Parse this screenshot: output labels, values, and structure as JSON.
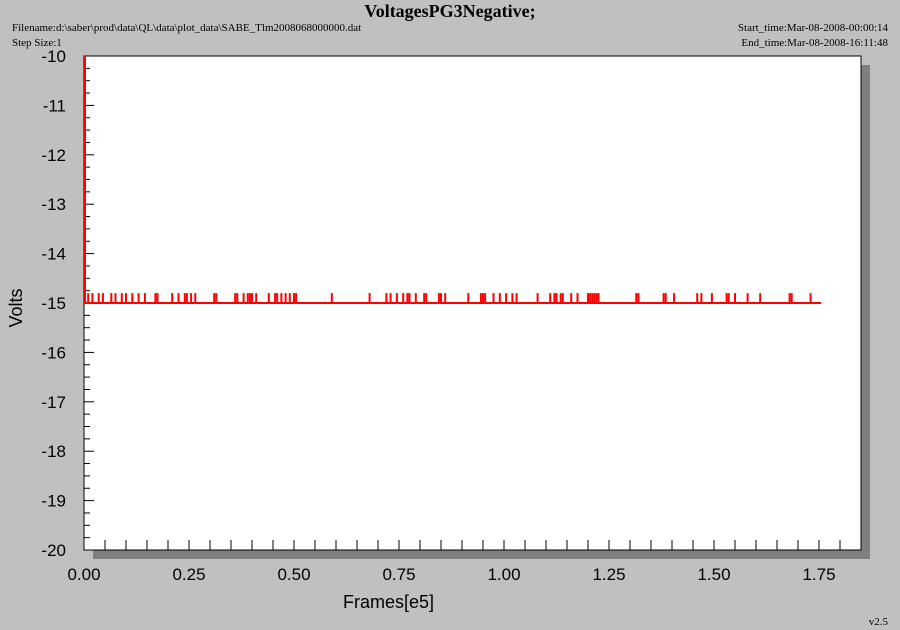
{
  "header": {
    "title": "VoltagesPG3Negative;",
    "filename": "Filename:d:\\saber\\prod\\data\\QL\\data\\plot_data\\SABE_Tlm2008068000000.dat",
    "step_size": "Step Size:1",
    "start_time": "Start_time:Mar-08-2008-00:00:14",
    "end_time": "End_time:Mar-08-2008-16:11:48"
  },
  "version": "v2.5",
  "colors": {
    "background": "#c0c0c0",
    "plot_area": "#ffffff",
    "shadow": "#7f7f7f",
    "series": "#ff0000"
  },
  "chart_data": {
    "type": "line",
    "xlabel": "Frames[e5]",
    "ylabel": "Volts",
    "xlim": [
      0,
      1.85
    ],
    "ylim": [
      -20,
      -10
    ],
    "y_inverted": true,
    "xticks": [
      "0.00",
      "0.25",
      "0.50",
      "0.75",
      "1.00",
      "1.25",
      "1.50",
      "1.75"
    ],
    "yticks": [
      "-10",
      "-11",
      "-12",
      "-13",
      "-14",
      "-15",
      "-16",
      "-17",
      "-18",
      "-19",
      "-20"
    ],
    "series": [
      {
        "baseline": -15,
        "spike_value": -14.8,
        "x_range": [
          0,
          1.755
        ],
        "initial_spike": {
          "x": 0,
          "from": -15,
          "to": -10
        },
        "spikes_x": [
          0.01,
          0.02,
          0.035,
          0.045,
          0.065,
          0.075,
          0.09,
          0.1,
          0.115,
          0.13,
          0.145,
          0.17,
          0.175,
          0.21,
          0.225,
          0.24,
          0.245,
          0.255,
          0.265,
          0.31,
          0.315,
          0.36,
          0.365,
          0.38,
          0.39,
          0.395,
          0.4,
          0.41,
          0.44,
          0.455,
          0.46,
          0.47,
          0.48,
          0.49,
          0.5,
          0.505,
          0.59,
          0.68,
          0.72,
          0.73,
          0.745,
          0.76,
          0.77,
          0.775,
          0.79,
          0.81,
          0.815,
          0.845,
          0.85,
          0.86,
          0.915,
          0.945,
          0.95,
          0.955,
          0.975,
          0.99,
          1.005,
          1.02,
          1.03,
          1.08,
          1.11,
          1.12,
          1.125,
          1.135,
          1.14,
          1.16,
          1.175,
          1.2,
          1.205,
          1.21,
          1.215,
          1.22,
          1.225,
          1.315,
          1.32,
          1.38,
          1.385,
          1.405,
          1.46,
          1.47,
          1.495,
          1.53,
          1.535,
          1.55,
          1.58,
          1.61,
          1.68,
          1.685,
          1.73
        ]
      }
    ]
  }
}
